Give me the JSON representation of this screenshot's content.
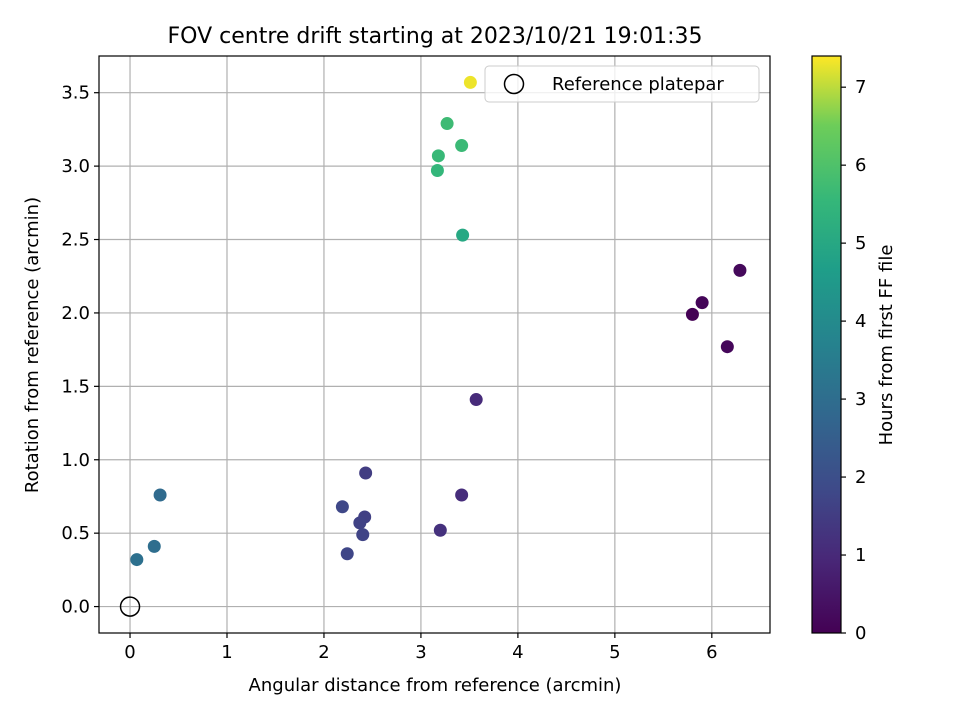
{
  "chart_data": {
    "type": "scatter",
    "title": "FOV centre drift starting at 2023/10/21 19:01:35",
    "xlabel": "Angular distance from reference (arcmin)",
    "ylabel": "Rotation from reference (arcmin)",
    "xlim": [
      -0.32,
      6.6
    ],
    "ylim": [
      -0.18,
      3.75
    ],
    "xticks": [
      0,
      1,
      2,
      3,
      4,
      5,
      6
    ],
    "yticks": [
      0.0,
      0.5,
      1.0,
      1.5,
      2.0,
      2.5,
      3.0,
      3.5
    ],
    "xtick_labels": [
      "0",
      "1",
      "2",
      "3",
      "4",
      "5",
      "6"
    ],
    "ytick_labels": [
      "0.0",
      "0.5",
      "1.0",
      "1.5",
      "2.0",
      "2.5",
      "3.0",
      "3.5"
    ],
    "grid": true,
    "legend": {
      "placement": "top-right",
      "entries": [
        "Reference platepar"
      ]
    },
    "reference_point": {
      "x": 0.0,
      "y": 0.0
    },
    "colorbar": {
      "label": "Hours from first FF file",
      "colormap": "viridis",
      "range": [
        0,
        7.4
      ],
      "ticks": [
        0,
        1,
        2,
        3,
        4,
        5,
        6,
        7
      ],
      "tick_labels": [
        "0",
        "1",
        "2",
        "3",
        "4",
        "5",
        "6",
        "7"
      ]
    },
    "points": [
      {
        "x": 5.8,
        "y": 1.99,
        "hours": 0.0
      },
      {
        "x": 5.9,
        "y": 2.07,
        "hours": 0.1
      },
      {
        "x": 6.16,
        "y": 1.77,
        "hours": 0.15
      },
      {
        "x": 6.29,
        "y": 2.29,
        "hours": 0.2
      },
      {
        "x": 3.57,
        "y": 1.41,
        "hours": 1.05
      },
      {
        "x": 3.42,
        "y": 0.76,
        "hours": 1.1
      },
      {
        "x": 3.2,
        "y": 0.52,
        "hours": 1.2
      },
      {
        "x": 2.43,
        "y": 0.91,
        "hours": 1.5
      },
      {
        "x": 2.42,
        "y": 0.61,
        "hours": 1.6
      },
      {
        "x": 2.37,
        "y": 0.57,
        "hours": 1.65
      },
      {
        "x": 2.4,
        "y": 0.49,
        "hours": 1.7
      },
      {
        "x": 2.24,
        "y": 0.36,
        "hours": 1.75
      },
      {
        "x": 2.19,
        "y": 0.68,
        "hours": 1.8
      },
      {
        "x": 0.31,
        "y": 0.76,
        "hours": 2.9
      },
      {
        "x": 0.25,
        "y": 0.41,
        "hours": 3.0
      },
      {
        "x": 0.07,
        "y": 0.32,
        "hours": 3.1
      },
      {
        "x": 3.43,
        "y": 2.53,
        "hours": 5.0
      },
      {
        "x": 3.17,
        "y": 2.97,
        "hours": 5.5
      },
      {
        "x": 3.18,
        "y": 3.07,
        "hours": 5.6
      },
      {
        "x": 3.42,
        "y": 3.14,
        "hours": 5.65
      },
      {
        "x": 3.27,
        "y": 3.29,
        "hours": 5.7
      },
      {
        "x": 3.51,
        "y": 3.57,
        "hours": 7.3
      }
    ]
  }
}
